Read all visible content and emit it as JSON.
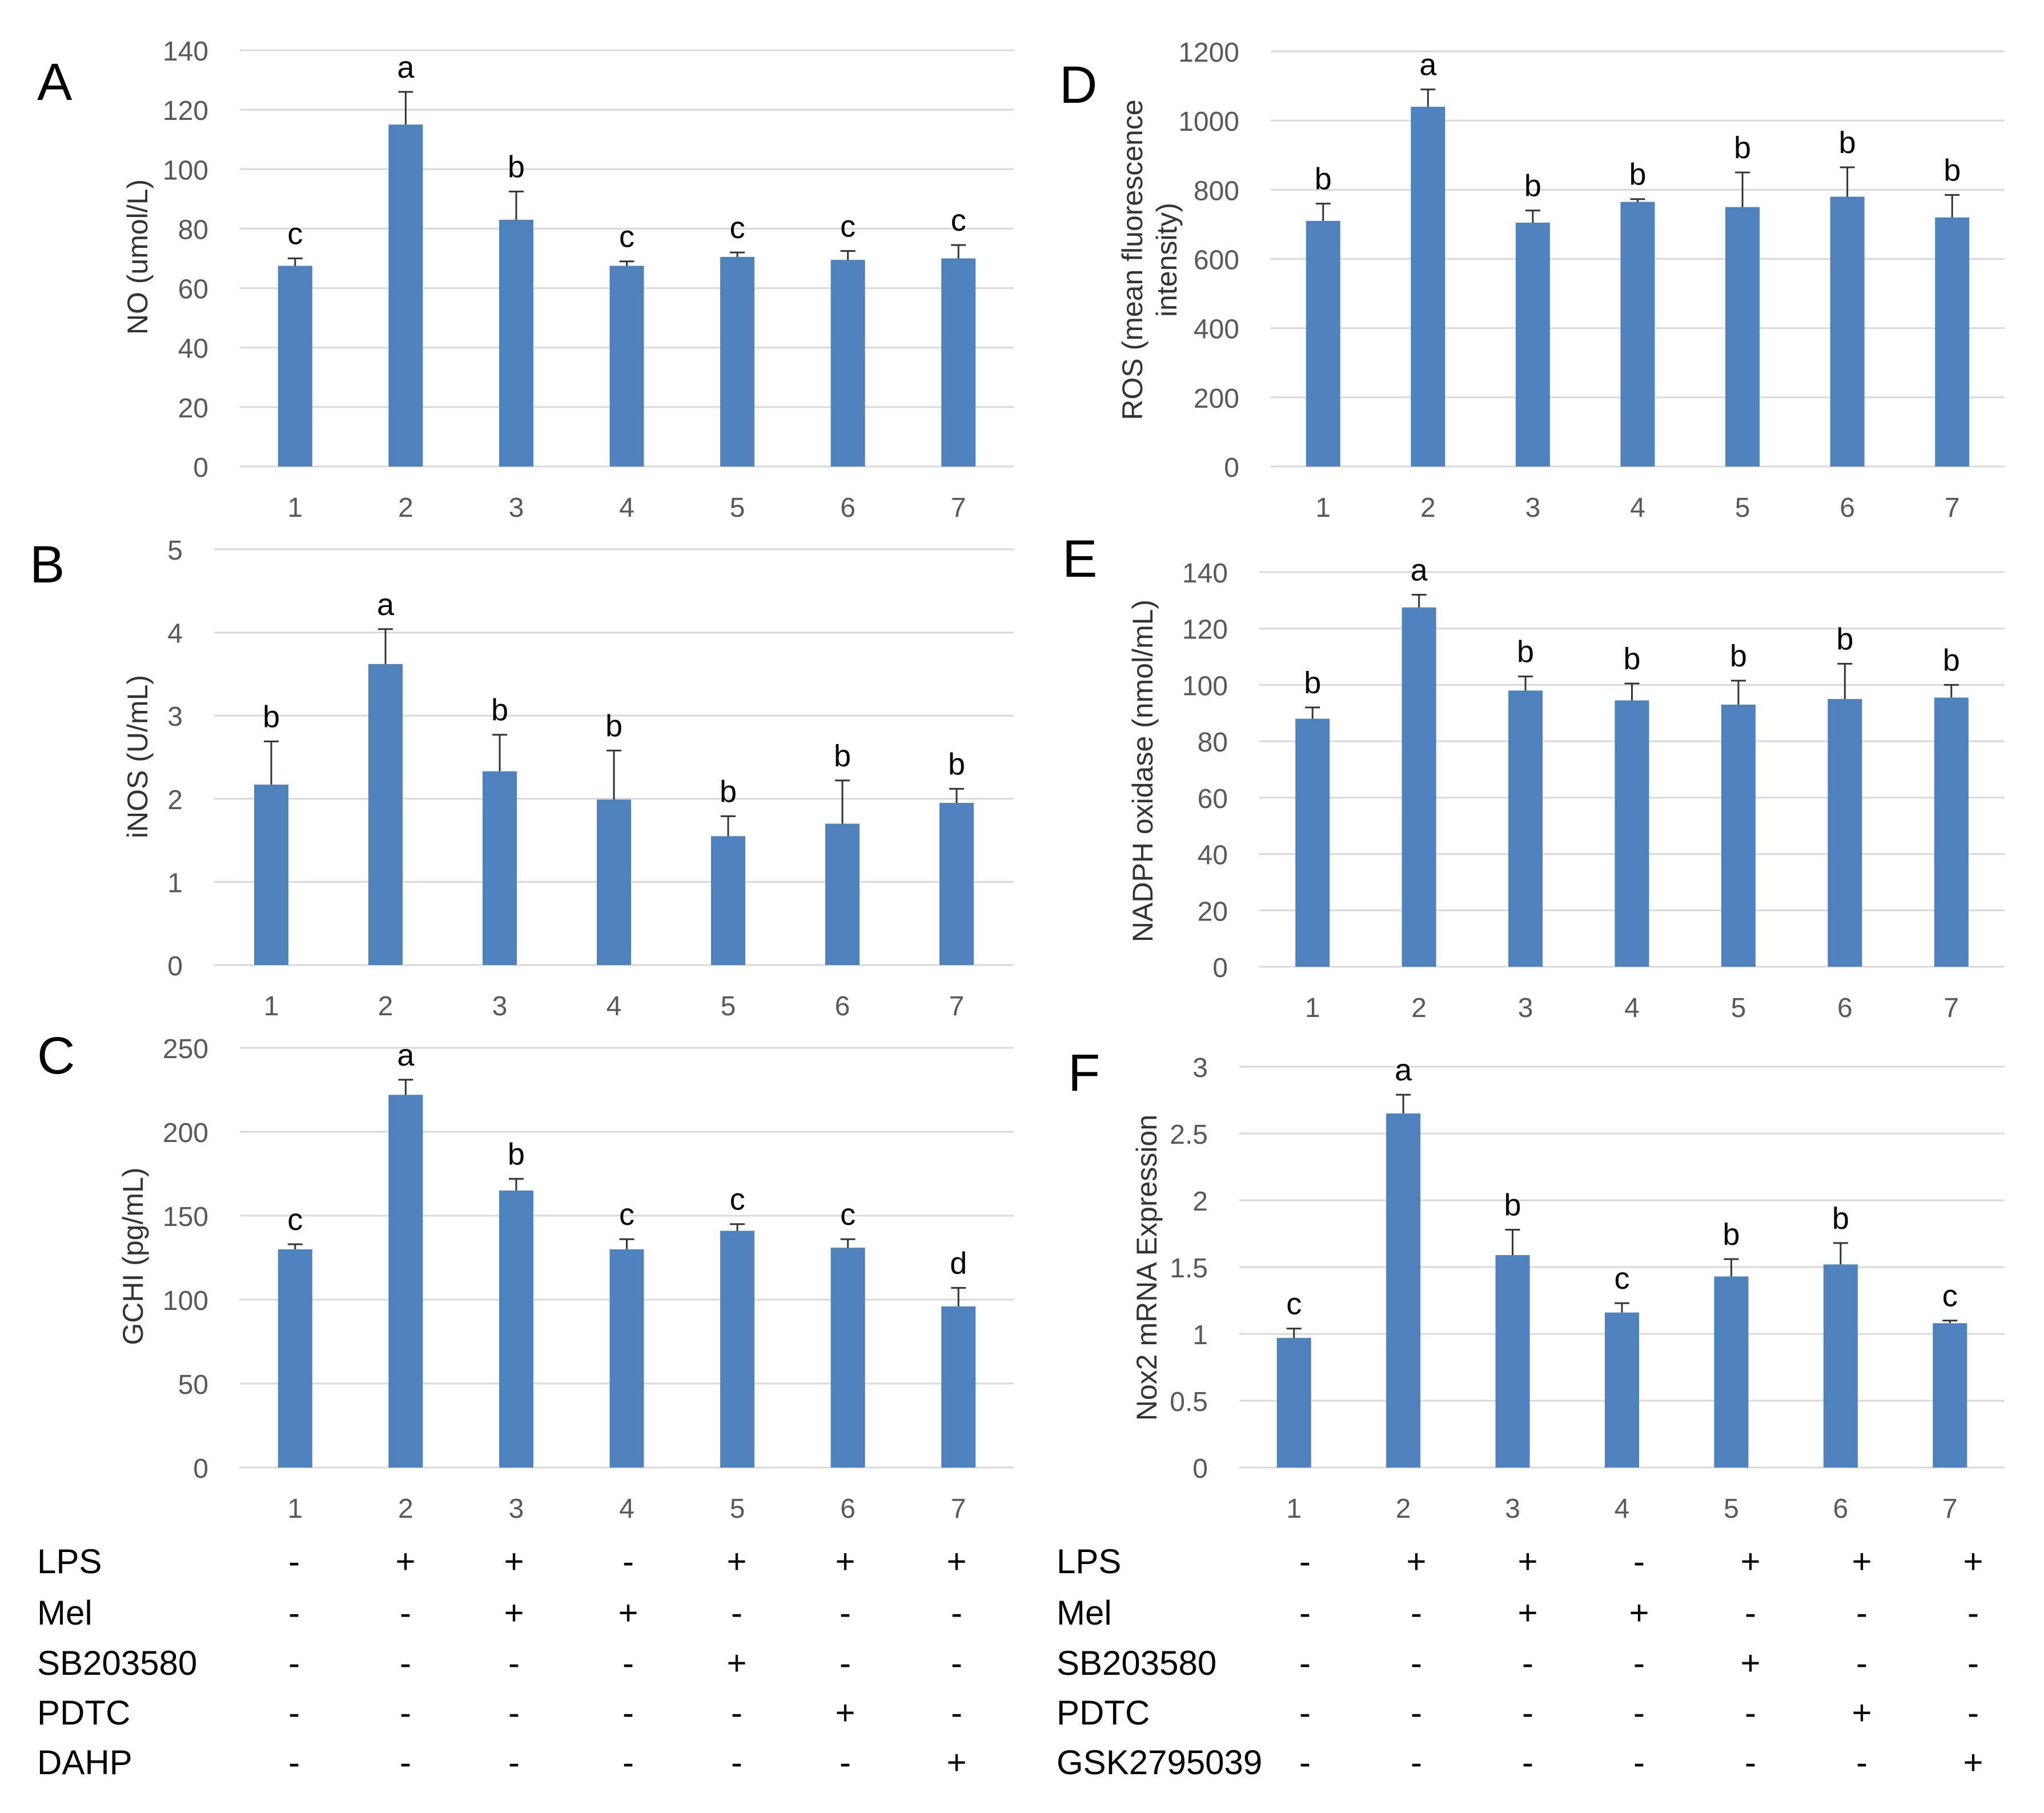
{
  "chart_data": [
    {
      "type": "bar",
      "panel_letter": "A",
      "ylabel": "NO (umol/L)",
      "ylim": [
        0,
        140
      ],
      "ytick_step": 20,
      "yticks": [
        "0",
        "20",
        "40",
        "60",
        "80",
        "100",
        "120",
        "140"
      ],
      "categories": [
        "1",
        "2",
        "3",
        "4",
        "5",
        "6",
        "7"
      ],
      "values": [
        67.5,
        115,
        83,
        67.5,
        70.5,
        69.5,
        70
      ],
      "errors": [
        2.5,
        11,
        9.5,
        1.5,
        1.5,
        3,
        4.5
      ],
      "letters": [
        "c",
        "a",
        "b",
        "c",
        "c",
        "c",
        "c"
      ],
      "bar_color": "#4f81bd"
    },
    {
      "type": "bar",
      "panel_letter": "B",
      "ylabel": "iNOS (U/mL)",
      "ylim": [
        0,
        5
      ],
      "ytick_step": 1,
      "yticks": [
        "0",
        "1",
        "2",
        "3",
        "4",
        "5"
      ],
      "categories": [
        "1",
        "2",
        "3",
        "4",
        "5",
        "6",
        "7"
      ],
      "values": [
        2.17,
        3.62,
        2.33,
        1.99,
        1.55,
        1.7,
        1.95
      ],
      "errors": [
        0.52,
        0.42,
        0.44,
        0.59,
        0.24,
        0.52,
        0.17
      ],
      "letters": [
        "b",
        "a",
        "b",
        "b",
        "b",
        "b",
        "b"
      ],
      "bar_color": "#4f81bd"
    },
    {
      "type": "bar",
      "panel_letter": "C",
      "ylabel": "GCHI (pg/mL)",
      "ylim": [
        0,
        250
      ],
      "ytick_step": 50,
      "yticks": [
        "0",
        "50",
        "100",
        "150",
        "200",
        "250"
      ],
      "categories": [
        "1",
        "2",
        "3",
        "4",
        "5",
        "6",
        "7"
      ],
      "values": [
        130,
        222,
        165,
        130,
        141,
        131,
        96
      ],
      "errors": [
        3,
        9,
        7,
        6,
        4,
        5,
        11
      ],
      "letters": [
        "c",
        "a",
        "b",
        "c",
        "c",
        "c",
        "d"
      ],
      "bar_color": "#4f81bd"
    },
    {
      "type": "bar",
      "panel_letter": "D",
      "ylabel": "ROS (mean fluorescence intensity)",
      "ylabel_lines": [
        "ROS (mean fluorescence",
        "intensity)"
      ],
      "ylim": [
        0,
        1200
      ],
      "ytick_step": 200,
      "yticks": [
        "0",
        "200",
        "400",
        "600",
        "800",
        "1000",
        "1200"
      ],
      "categories": [
        "1",
        "2",
        "3",
        "4",
        "5",
        "6",
        "7"
      ],
      "values": [
        710,
        1040,
        705,
        765,
        750,
        780,
        720
      ],
      "errors": [
        50,
        50,
        35,
        8,
        100,
        85,
        65
      ],
      "letters": [
        "b",
        "a",
        "b",
        "b",
        "b",
        "b",
        "b"
      ],
      "bar_color": "#4f81bd"
    },
    {
      "type": "bar",
      "panel_letter": "E",
      "ylabel": "NADPH oxidase (nmol/mL)",
      "ylim": [
        0,
        140
      ],
      "ytick_step": 20,
      "yticks": [
        "0",
        "20",
        "40",
        "60",
        "80",
        "100",
        "120",
        "140"
      ],
      "categories": [
        "1",
        "2",
        "3",
        "4",
        "5",
        "6",
        "7"
      ],
      "values": [
        88,
        127.5,
        98,
        94.5,
        93,
        95,
        95.5
      ],
      "errors": [
        4,
        4.5,
        5,
        6,
        8.5,
        12.5,
        4.5
      ],
      "letters": [
        "b",
        "a",
        "b",
        "b",
        "b",
        "b",
        "b"
      ],
      "bar_color": "#4f81bd"
    },
    {
      "type": "bar",
      "panel_letter": "F",
      "ylabel": "Nox2 mRNA Expression",
      "ylim": [
        0,
        3
      ],
      "ytick_step": 0.5,
      "yticks": [
        "0",
        "0.5",
        "1",
        "1.5",
        "2",
        "2.5",
        "3"
      ],
      "categories": [
        "1",
        "2",
        "3",
        "4",
        "5",
        "6",
        "7"
      ],
      "values": [
        0.97,
        2.65,
        1.59,
        1.16,
        1.43,
        1.52,
        1.08
      ],
      "errors": [
        0.07,
        0.14,
        0.19,
        0.07,
        0.13,
        0.16,
        0.02
      ],
      "letters": [
        "c",
        "a",
        "b",
        "c",
        "b",
        "b",
        "c"
      ],
      "bar_color": "#4f81bd"
    }
  ],
  "conditions_left": {
    "rows": [
      {
        "label": "LPS",
        "signs": [
          "-",
          "+",
          "+",
          "-",
          "+",
          "+",
          "+"
        ]
      },
      {
        "label": "Mel",
        "signs": [
          "-",
          "-",
          "+",
          "+",
          "-",
          "-",
          "-"
        ]
      },
      {
        "label": "SB203580",
        "signs": [
          "-",
          "-",
          "-",
          "-",
          "+",
          "-",
          "-"
        ]
      },
      {
        "label": "PDTC",
        "signs": [
          "-",
          "-",
          "-",
          "-",
          "-",
          "+",
          "-"
        ]
      },
      {
        "label": "DAHP",
        "signs": [
          "-",
          "-",
          "-",
          "-",
          "-",
          "-",
          "+"
        ]
      }
    ]
  },
  "conditions_right": {
    "rows": [
      {
        "label": "LPS",
        "signs": [
          "-",
          "+",
          "+",
          "-",
          "+",
          "+",
          "+"
        ]
      },
      {
        "label": "Mel",
        "signs": [
          "-",
          "-",
          "+",
          "+",
          "-",
          "-",
          "-"
        ]
      },
      {
        "label": "SB203580",
        "signs": [
          "-",
          "-",
          "-",
          "-",
          "+",
          "-",
          "-"
        ]
      },
      {
        "label": "PDTC",
        "signs": [
          "-",
          "-",
          "-",
          "-",
          "-",
          "+",
          "-"
        ]
      },
      {
        "label": "GSK2795039",
        "signs": [
          "-",
          "-",
          "-",
          "-",
          "-",
          "-",
          "+"
        ]
      }
    ]
  },
  "colors": {
    "bar": "#4f81bd",
    "grid": "#d9d9d9",
    "axis_text": "#595959"
  }
}
